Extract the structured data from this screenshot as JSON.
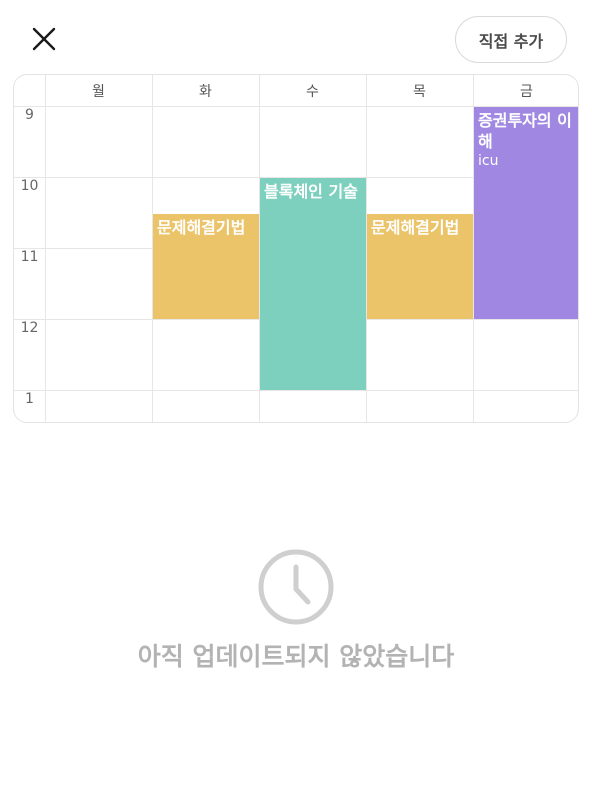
{
  "header": {
    "close_icon": "close-icon",
    "add_label": "직접 추가"
  },
  "timetable": {
    "days": [
      "월",
      "화",
      "수",
      "목",
      "금"
    ],
    "hours": [
      "9",
      "10",
      "11",
      "12",
      "1"
    ],
    "events": [
      {
        "title": "문제해결기법",
        "room": "",
        "day": 1,
        "start": 10.5,
        "end": 12,
        "color": "#EBC368"
      },
      {
        "title": "블록체인 기술",
        "room": "",
        "day": 2,
        "start": 10,
        "end": 13,
        "color": "#7ED0BE"
      },
      {
        "title": "문제해결기법",
        "room": "",
        "day": 3,
        "start": 10.5,
        "end": 12,
        "color": "#EBC368"
      },
      {
        "title": "증권투자의 이해",
        "room": "icu",
        "day": 4,
        "start": 9,
        "end": 12,
        "color": "#A088E2"
      }
    ]
  },
  "empty_state": {
    "icon": "clock-icon",
    "message": "아직 업데이트되지 않았습니다"
  }
}
